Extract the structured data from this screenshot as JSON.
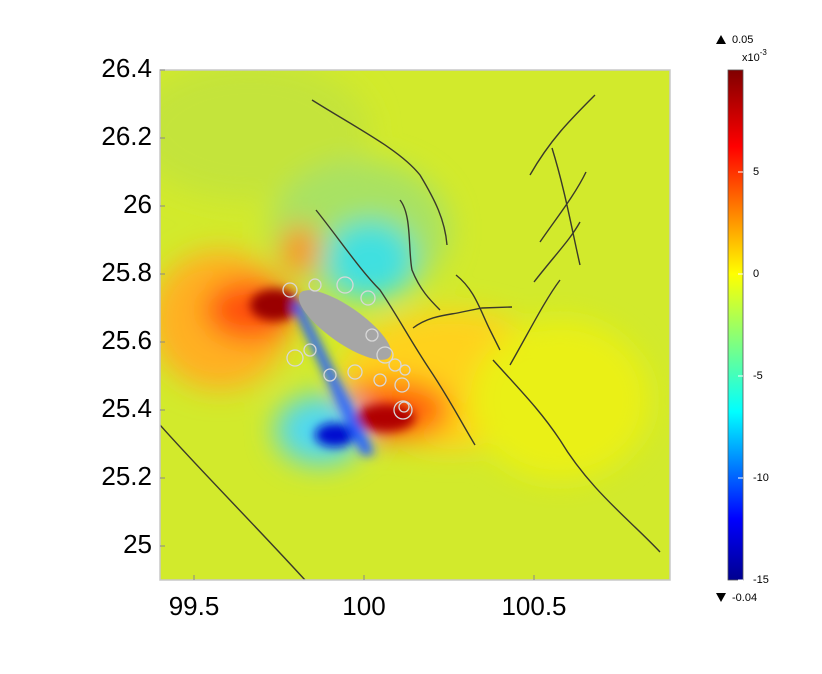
{
  "chart_data": {
    "type": "map",
    "xlim": [
      99.4,
      100.9
    ],
    "ylim": [
      24.9,
      26.4
    ],
    "xticks": [
      99.5,
      100,
      100.5
    ],
    "yticks": [
      25,
      25.2,
      25.4,
      25.6,
      25.8,
      26,
      26.2,
      26.4
    ],
    "colorbar": {
      "clim": [
        -15,
        10
      ],
      "ticks": [
        -15,
        -10,
        -5,
        0,
        5
      ],
      "max": 0.05,
      "min": -0.04,
      "unit": "x10",
      "exponent": "-3"
    }
  }
}
